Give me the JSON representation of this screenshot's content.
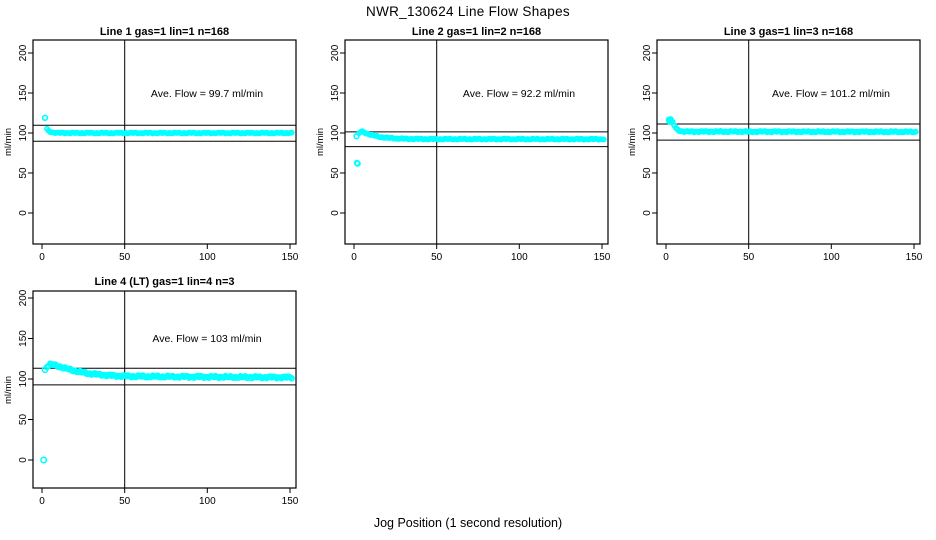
{
  "title": "NWR_130624  Line Flow Shapes",
  "xlabel": "Jog Position (1 second resolution)",
  "colors": {
    "points": "#00FFFF",
    "axis": "#000000",
    "background": "#ffffff"
  },
  "chart_data": [
    {
      "type": "scatter",
      "title": "Line 1 gas=1 lin=1 n=168",
      "annotation": "Ave. Flow =  99.7  ml/min",
      "ave_flow_ml_min": 99.7,
      "ylabel": "ml/min",
      "xticks": [
        0,
        50,
        100,
        150
      ],
      "yticks": [
        0,
        50,
        100,
        150,
        200
      ],
      "xlim": [
        0,
        155
      ],
      "ylim": [
        -40,
        215
      ],
      "vline_x": 50,
      "hlines": [
        109.7,
        89.7
      ],
      "marker_radius": 2.1,
      "jitter": 0.7,
      "outliers": [
        [
          1.8,
          119
        ]
      ],
      "profile": [
        [
          3,
          105
        ],
        [
          4,
          102.5
        ],
        [
          5,
          101.5
        ],
        [
          7,
          100.6
        ],
        [
          10,
          100.2
        ],
        [
          20,
          100
        ],
        [
          151,
          100
        ]
      ]
    },
    {
      "type": "scatter",
      "title": "Line 2 gas=1 lin=2 n=168",
      "annotation": "Ave. Flow =  92.2  ml/min",
      "ave_flow_ml_min": 92.2,
      "ylabel": "ml/min",
      "xticks": [
        0,
        50,
        100,
        150
      ],
      "yticks": [
        0,
        50,
        100,
        150,
        200
      ],
      "xlim": [
        0,
        155
      ],
      "ylim": [
        -40,
        215
      ],
      "vline_x": 50,
      "hlines": [
        101.4,
        83.0
      ],
      "marker_radius": 2.1,
      "jitter": 0.8,
      "outliers": [
        [
          1.5,
          96
        ],
        [
          1.8,
          62.5
        ],
        [
          2.2,
          61.8
        ]
      ],
      "profile": [
        [
          3,
          99.5
        ],
        [
          4,
          101.3
        ],
        [
          5,
          101.8
        ],
        [
          6,
          101
        ],
        [
          8,
          99.2
        ],
        [
          10,
          97.8
        ],
        [
          13,
          96.2
        ],
        [
          16,
          95
        ],
        [
          20,
          94
        ],
        [
          25,
          93.2
        ],
        [
          32,
          92.7
        ],
        [
          45,
          92.4
        ],
        [
          151,
          92.3
        ]
      ]
    },
    {
      "type": "scatter",
      "title": "Line 3 gas=1 lin=3 n=168",
      "annotation": "Ave. Flow =  101.2  ml/min",
      "ave_flow_ml_min": 101.2,
      "ylabel": "ml/min",
      "xticks": [
        0,
        50,
        100,
        150
      ],
      "yticks": [
        0,
        50,
        100,
        150,
        200
      ],
      "xlim": [
        0,
        155
      ],
      "ylim": [
        -40,
        215
      ],
      "vline_x": 50,
      "hlines": [
        111.3,
        91.1
      ],
      "marker_radius": 2.2,
      "jitter": 0.9,
      "outliers": [
        [
          1.8,
          116.5
        ],
        [
          2.2,
          114.5
        ],
        [
          2.8,
          117
        ],
        [
          3.2,
          114
        ]
      ],
      "profile": [
        [
          4,
          113
        ],
        [
          5,
          109.5
        ],
        [
          6,
          106
        ],
        [
          7,
          103.8
        ],
        [
          9,
          102.4
        ],
        [
          12,
          101.8
        ],
        [
          151,
          101.4
        ]
      ]
    },
    {
      "type": "scatter",
      "title": "Line 4 (LT) gas=1 lin=4 n=3",
      "annotation": "Ave. Flow =  103  ml/min",
      "ave_flow_ml_min": 103,
      "ylabel": "ml/min",
      "xticks": [
        0,
        50,
        100,
        150
      ],
      "yticks": [
        0,
        50,
        100,
        150,
        200
      ],
      "xlim": [
        0,
        155
      ],
      "ylim": [
        -40,
        215
      ],
      "vline_x": 50,
      "hlines": [
        113.3,
        92.7
      ],
      "marker_radius": 2.4,
      "jitter": 1.4,
      "outliers": [
        [
          1,
          0
        ],
        [
          1.8,
          111.5
        ]
      ],
      "profile": [
        [
          3,
          115
        ],
        [
          4,
          117
        ],
        [
          5,
          118
        ],
        [
          7,
          117.5
        ],
        [
          10,
          115.8
        ],
        [
          14,
          113.2
        ],
        [
          18,
          111
        ],
        [
          23,
          108.8
        ],
        [
          28,
          107
        ],
        [
          34,
          105.5
        ],
        [
          42,
          104.2
        ],
        [
          52,
          103.4
        ],
        [
          70,
          103
        ],
        [
          100,
          102.6
        ],
        [
          130,
          102.2
        ],
        [
          151,
          102
        ]
      ]
    }
  ]
}
